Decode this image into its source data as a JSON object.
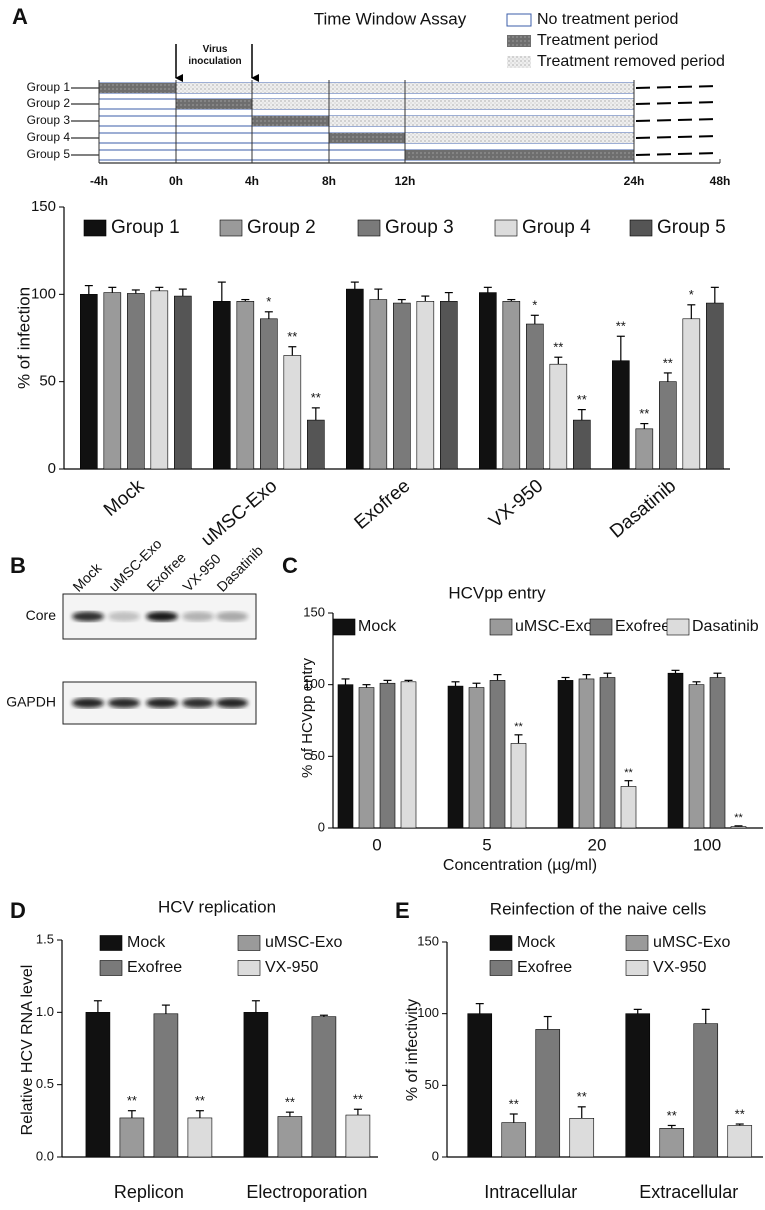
{
  "time_window": {
    "panel": "A",
    "title": "Time Window Assay",
    "legend": [
      "No treatment period",
      "Treatment period",
      "Treatment removed period"
    ],
    "groups": [
      "Group 1",
      "Group 2",
      "Group 3",
      "Group 4",
      "Group 5"
    ],
    "virus_label": "Virus inoculation",
    "time_labels": [
      "-4h",
      "0h",
      "4h",
      "8h",
      "12h",
      "24h",
      "48h"
    ]
  },
  "blot": {
    "panel": "B",
    "lanes": [
      "Mock",
      "uMSC-Exo",
      "Exofree",
      "VX-950",
      "Dasatinib"
    ],
    "rows": [
      "Core",
      "GAPDH"
    ]
  },
  "chart_data": [
    {
      "panel": "A",
      "type": "bar",
      "ylabel": "% of infection",
      "categories": [
        "Mock",
        "uMSC-Exo",
        "Exofree",
        "VX-950",
        "Dasatinib"
      ],
      "ylim": [
        0,
        150
      ],
      "yticks": [
        0,
        50,
        100,
        150
      ],
      "series": [
        {
          "name": "Group 1",
          "color": "#111111",
          "values": [
            100,
            96,
            103,
            101,
            62
          ],
          "errors": [
            5,
            11,
            4,
            3,
            14
          ],
          "significance": [
            null,
            null,
            null,
            null,
            "**"
          ]
        },
        {
          "name": "Group 2",
          "color": "#9a9a9a",
          "values": [
            101,
            96,
            97,
            96,
            23
          ],
          "errors": [
            3,
            1,
            6,
            1,
            3
          ],
          "significance": [
            null,
            null,
            null,
            null,
            "**"
          ]
        },
        {
          "name": "Group 3",
          "color": "#7a7a7a",
          "values": [
            100.5,
            86,
            95,
            83,
            50
          ],
          "errors": [
            2,
            4,
            2,
            5,
            5
          ],
          "significance": [
            null,
            "*",
            null,
            "*",
            "**"
          ]
        },
        {
          "name": "Group 4",
          "color": "#dcdcdc",
          "values": [
            102,
            65,
            96,
            60,
            86
          ],
          "errors": [
            2,
            5,
            3,
            4,
            8
          ],
          "significance": [
            null,
            "**",
            null,
            "**",
            "*"
          ]
        },
        {
          "name": "Group 5",
          "color": "#555555",
          "values": [
            99,
            28,
            96,
            28,
            95
          ],
          "errors": [
            4,
            7,
            5,
            6,
            9
          ],
          "significance": [
            null,
            "**",
            null,
            "**",
            null
          ]
        }
      ]
    },
    {
      "panel": "C",
      "type": "bar",
      "title": "HCVpp entry",
      "ylabel": "% of HCVpp entry",
      "xlabel": "Concentration (µg/ml)",
      "categories": [
        "0",
        "5",
        "20",
        "100"
      ],
      "ylim": [
        0,
        150
      ],
      "yticks": [
        0,
        50,
        100,
        150
      ],
      "series": [
        {
          "name": "Mock",
          "color": "#111111",
          "values": [
            100,
            99,
            103,
            108
          ],
          "errors": [
            4,
            3,
            2,
            2
          ],
          "significance": [
            null,
            null,
            null,
            null
          ]
        },
        {
          "name": "uMSC-Exo",
          "color": "#9a9a9a",
          "values": [
            98,
            98,
            104,
            100
          ],
          "errors": [
            2,
            3,
            3,
            2
          ],
          "significance": [
            null,
            null,
            null,
            null
          ]
        },
        {
          "name": "Exofree",
          "color": "#7a7a7a",
          "values": [
            101,
            103,
            105,
            105
          ],
          "errors": [
            2,
            4,
            3,
            3
          ],
          "significance": [
            null,
            null,
            null,
            null
          ]
        },
        {
          "name": "Dasatinib",
          "color": "#dcdcdc",
          "values": [
            102,
            59,
            29,
            1
          ],
          "errors": [
            1,
            6,
            4,
            0.5
          ],
          "significance": [
            null,
            "**",
            "**",
            "**"
          ]
        }
      ]
    },
    {
      "panel": "D",
      "type": "bar",
      "title": "HCV replication",
      "ylabel": "Relative HCV RNA level",
      "categories": [
        "Replicon",
        "Electroporation"
      ],
      "ylim": [
        0,
        1.5
      ],
      "yticks": [
        {
          "value": 0,
          "label": "0.0"
        },
        0.5,
        {
          "value": 1,
          "label": "1.0"
        },
        1.5
      ],
      "series": [
        {
          "name": "Mock",
          "color": "#111111",
          "values": [
            1.0,
            1.0
          ],
          "errors": [
            0.08,
            0.08
          ],
          "significance": [
            null,
            null
          ]
        },
        {
          "name": "uMSC-Exo",
          "color": "#9a9a9a",
          "values": [
            0.27,
            0.28
          ],
          "errors": [
            0.05,
            0.03
          ],
          "significance": [
            "**",
            "**"
          ]
        },
        {
          "name": "Exofree",
          "color": "#7a7a7a",
          "values": [
            0.99,
            0.97
          ],
          "errors": [
            0.06,
            0.01
          ],
          "significance": [
            null,
            null
          ]
        },
        {
          "name": "VX-950",
          "color": "#dcdcdc",
          "values": [
            0.27,
            0.29
          ],
          "errors": [
            0.05,
            0.04
          ],
          "significance": [
            "**",
            "**"
          ]
        }
      ]
    },
    {
      "panel": "E",
      "type": "bar",
      "title": "Reinfection of the naive cells",
      "ylabel": "% of infectivity",
      "categories": [
        "Intracellular",
        "Extracellular"
      ],
      "ylim": [
        0,
        150
      ],
      "yticks": [
        0,
        50,
        100,
        150
      ],
      "series": [
        {
          "name": "Mock",
          "color": "#111111",
          "values": [
            100,
            100
          ],
          "errors": [
            7,
            3
          ],
          "significance": [
            null,
            null
          ]
        },
        {
          "name": "uMSC-Exo",
          "color": "#9a9a9a",
          "values": [
            24,
            20
          ],
          "errors": [
            6,
            2
          ],
          "significance": [
            "**",
            "**"
          ]
        },
        {
          "name": "Exofree",
          "color": "#7a7a7a",
          "values": [
            89,
            93
          ],
          "errors": [
            9,
            10
          ],
          "significance": [
            null,
            null
          ]
        },
        {
          "name": "VX-950",
          "color": "#dcdcdc",
          "values": [
            27,
            22
          ],
          "errors": [
            8,
            1
          ],
          "significance": [
            "**",
            "**"
          ]
        }
      ]
    }
  ]
}
